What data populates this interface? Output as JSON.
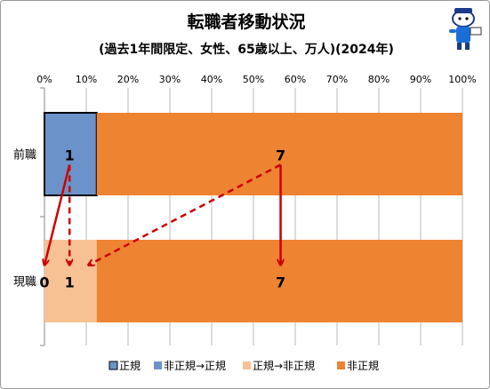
{
  "chart_data": {
    "type": "bar",
    "stacked": "percent",
    "orientation": "horizontal",
    "title": "転職者移動状況",
    "subtitle": "(過去1年間限定、女性、65歳以上、万人)(2024年)",
    "categories": [
      "前職",
      "現職"
    ],
    "xlim": [
      0,
      100
    ],
    "x_ticks": [
      "0%",
      "10%",
      "20%",
      "30%",
      "40%",
      "50%",
      "60%",
      "70%",
      "80%",
      "90%",
      "100%"
    ],
    "grid": true,
    "legend_position": "bottom",
    "series": [
      {
        "name": "正規",
        "color": "#6b93c9",
        "values": [
          12.5,
          0
        ]
      },
      {
        "name": "非正規→正規",
        "color": "#6b93c9",
        "values": [
          0,
          0
        ]
      },
      {
        "name": "正規→非正規",
        "color": "#f8c194",
        "values": [
          0,
          12.5
        ]
      },
      {
        "name": "非正規",
        "color": "#ee8332",
        "values": [
          87.5,
          87.5
        ]
      }
    ],
    "data_labels": [
      {
        "category": "前職",
        "x_pct": 6,
        "text": "1"
      },
      {
        "category": "前職",
        "x_pct": 56.5,
        "text": "7"
      },
      {
        "category": "現職",
        "x_pct": 0,
        "text": "0"
      },
      {
        "category": "現職",
        "x_pct": 6,
        "text": "1"
      },
      {
        "category": "現職",
        "x_pct": 56.5,
        "text": "7"
      }
    ],
    "flows": [
      {
        "from": [
          6,
          "前職"
        ],
        "to": [
          0,
          "現職"
        ],
        "style": "solid",
        "color": "#cc0000"
      },
      {
        "from": [
          6,
          "前職"
        ],
        "to": [
          6,
          "現職"
        ],
        "style": "dashed",
        "color": "#cc0000"
      },
      {
        "from": [
          56.5,
          "前職"
        ],
        "to": [
          10.5,
          "現職"
        ],
        "style": "dashed",
        "color": "#cc0000"
      },
      {
        "from": [
          56.5,
          "前職"
        ],
        "to": [
          56.5,
          "現職"
        ],
        "style": "solid",
        "color": "#cc0000"
      }
    ]
  }
}
